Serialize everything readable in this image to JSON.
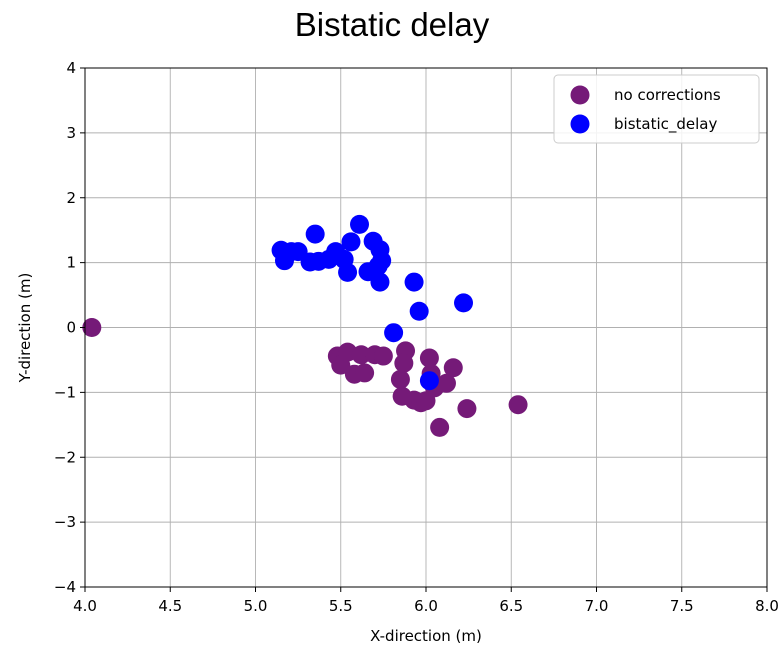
{
  "chart_data": {
    "type": "scatter",
    "title": "Bistatic delay",
    "xlabel": "X-direction (m)",
    "ylabel": "Y-direction (m)",
    "xlim": [
      4.0,
      8.0
    ],
    "ylim": [
      -4,
      4
    ],
    "xticks": [
      4.0,
      4.5,
      5.0,
      5.5,
      6.0,
      6.5,
      7.0,
      7.5,
      8.0
    ],
    "xtick_labels": [
      "4.0",
      "4.5",
      "5.0",
      "5.5",
      "6.0",
      "6.5",
      "7.0",
      "7.5",
      "8.0"
    ],
    "yticks": [
      -4,
      -3,
      -2,
      -1,
      0,
      1,
      2,
      3,
      4
    ],
    "ytick_labels": [
      "−4",
      "−3",
      "−2",
      "−1",
      "0",
      "1",
      "2",
      "3",
      "4"
    ],
    "grid": true,
    "legend_position": "top-right",
    "series": [
      {
        "name": "no corrections",
        "color": "#751a78",
        "points": [
          [
            4.04,
            0.0
          ],
          [
            5.48,
            -0.44
          ],
          [
            5.5,
            -0.58
          ],
          [
            5.54,
            -0.38
          ],
          [
            5.58,
            -0.72
          ],
          [
            5.62,
            -0.42
          ],
          [
            5.64,
            -0.7
          ],
          [
            5.7,
            -0.42
          ],
          [
            5.75,
            -0.44
          ],
          [
            5.85,
            -0.8
          ],
          [
            5.86,
            -1.06
          ],
          [
            5.88,
            -0.36
          ],
          [
            5.87,
            -0.55
          ],
          [
            5.93,
            -1.12
          ],
          [
            5.97,
            -1.16
          ],
          [
            6.0,
            -1.13
          ],
          [
            6.02,
            -0.47
          ],
          [
            6.03,
            -0.71
          ],
          [
            6.05,
            -0.93
          ],
          [
            6.08,
            -1.54
          ],
          [
            6.12,
            -0.86
          ],
          [
            6.16,
            -0.62
          ],
          [
            6.24,
            -1.25
          ],
          [
            6.54,
            -1.19
          ]
        ]
      },
      {
        "name": "bistatic_delay",
        "color": "#0000ff",
        "points": [
          [
            5.15,
            1.19
          ],
          [
            5.17,
            1.03
          ],
          [
            5.21,
            1.17
          ],
          [
            5.25,
            1.17
          ],
          [
            5.32,
            1.01
          ],
          [
            5.35,
            1.44
          ],
          [
            5.37,
            1.02
          ],
          [
            5.43,
            1.05
          ],
          [
            5.47,
            1.17
          ],
          [
            5.52,
            1.05
          ],
          [
            5.54,
            0.85
          ],
          [
            5.56,
            1.32
          ],
          [
            5.61,
            1.59
          ],
          [
            5.66,
            0.86
          ],
          [
            5.69,
            1.33
          ],
          [
            5.72,
            0.95
          ],
          [
            5.73,
            1.2
          ],
          [
            5.74,
            1.03
          ],
          [
            5.73,
            0.7
          ],
          [
            5.81,
            -0.08
          ],
          [
            5.93,
            0.7
          ],
          [
            5.96,
            0.25
          ],
          [
            6.02,
            -0.82
          ],
          [
            6.22,
            0.38
          ]
        ]
      }
    ]
  }
}
